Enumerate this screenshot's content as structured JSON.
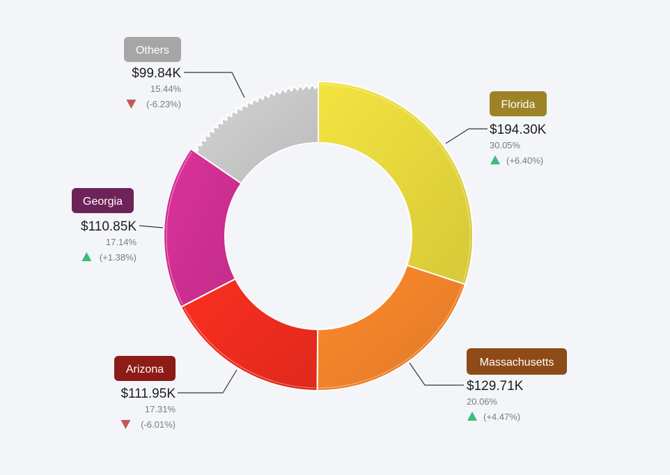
{
  "chart_data": {
    "type": "pie",
    "variant": "donut",
    "title": "",
    "slices": [
      {
        "label": "Florida",
        "value": 194.3,
        "value_label": "$194.30K",
        "percent": 30.05,
        "percent_label": "30.05%",
        "change": 6.4,
        "change_label": "(+6.40%)",
        "trend": "up",
        "color": "#e6d73c",
        "badge_color": "#9c8326"
      },
      {
        "label": "Massachusetts",
        "value": 129.71,
        "value_label": "$129.71K",
        "percent": 20.06,
        "percent_label": "20.06%",
        "change": 4.47,
        "change_label": "(+4.47%)",
        "trend": "up",
        "color": "#f0822a",
        "badge_color": "#8e4a17"
      },
      {
        "label": "Arizona",
        "value": 111.95,
        "value_label": "$111.95K",
        "percent": 17.31,
        "percent_label": "17.31%",
        "change": -6.01,
        "change_label": "(-6.01%)",
        "trend": "down",
        "color": "#ee2c1e",
        "badge_color": "#8d1b16"
      },
      {
        "label": "Georgia",
        "value": 110.85,
        "value_label": "$110.85K",
        "percent": 17.14,
        "percent_label": "17.14%",
        "change": 1.38,
        "change_label": "(+1.38%)",
        "trend": "up",
        "color": "#d02f92",
        "badge_color": "#6e2358"
      },
      {
        "label": "Others",
        "value": 99.84,
        "value_label": "$99.84K",
        "percent": 15.44,
        "percent_label": "15.44%",
        "change": -6.23,
        "change_label": "(-6.23%)",
        "trend": "down",
        "color": "#c8c8c8",
        "badge_color": "#a6a6a6"
      }
    ],
    "colors": {
      "up": "#3dbb7c",
      "down": "#c0595a",
      "background": "#f3f5f9"
    }
  }
}
